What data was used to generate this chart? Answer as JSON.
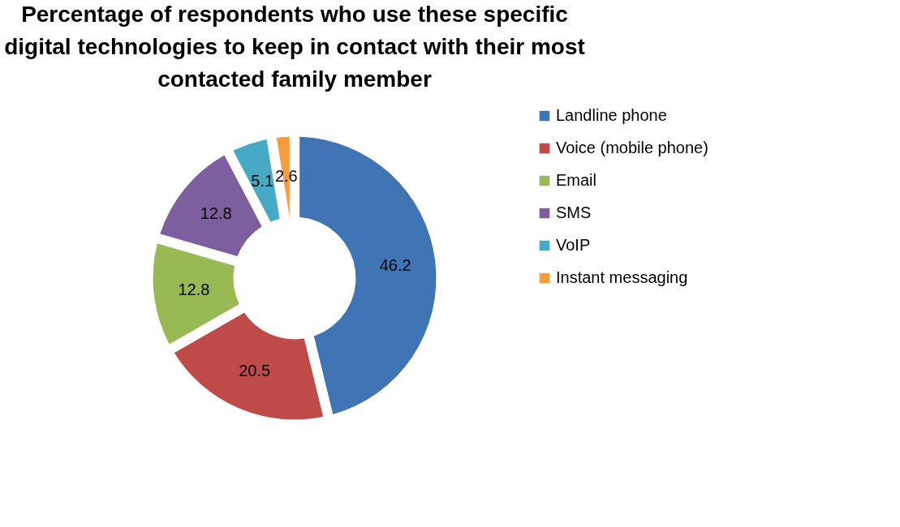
{
  "chart_data": {
    "type": "donut",
    "title": "Percentage of respondents who use these specific digital technologies to keep in contact with their most contacted family member",
    "categories": [
      "Landline phone",
      "Voice (mobile phone)",
      "Email",
      "SMS",
      "VoIP",
      "Instant messaging"
    ],
    "values": [
      46.2,
      20.5,
      12.8,
      12.8,
      5.1,
      2.6
    ],
    "colors": [
      "#3f74b5",
      "#be4b48",
      "#98b954",
      "#7d5fa0",
      "#46aac5",
      "#f59d3d"
    ],
    "data_labels": true,
    "legend": "right"
  }
}
